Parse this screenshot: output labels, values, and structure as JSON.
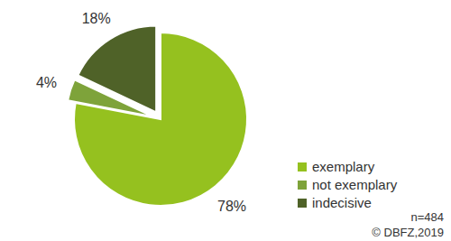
{
  "chart_data": {
    "type": "pie",
    "categories": [
      "exemplary",
      "not exemplary",
      "indecisive"
    ],
    "values": [
      78,
      4,
      18
    ],
    "value_labels": [
      "78%",
      "4%",
      "18%"
    ],
    "colors": [
      "#95c11f",
      "#7ea33a",
      "#4f6228"
    ],
    "data_labels": true,
    "legend": "bottom-right",
    "annotations": [
      "n=484",
      "© DBFZ,2019"
    ]
  }
}
